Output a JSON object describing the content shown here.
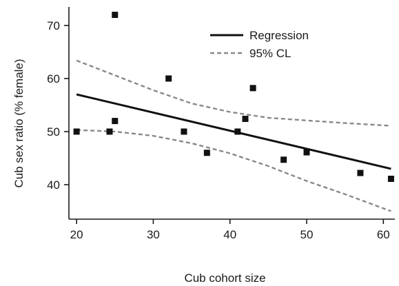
{
  "chart_data": {
    "type": "scatter",
    "xlabel": "Cub cohort size",
    "ylabel": "Cub sex ratio (% female)",
    "xlim": [
      19,
      61.5
    ],
    "ylim": [
      33.5,
      73.5
    ],
    "x_ticks": [
      20,
      30,
      40,
      50,
      60
    ],
    "y_ticks": [
      40,
      50,
      60,
      70
    ],
    "grid": false,
    "legend_position": "top-right",
    "points": [
      {
        "x": 20,
        "y": 50
      },
      {
        "x": 24.3,
        "y": 50
      },
      {
        "x": 25,
        "y": 52
      },
      {
        "x": 25,
        "y": 72
      },
      {
        "x": 32,
        "y": 60
      },
      {
        "x": 34,
        "y": 50
      },
      {
        "x": 37,
        "y": 46
      },
      {
        "x": 41,
        "y": 50
      },
      {
        "x": 42,
        "y": 52.4
      },
      {
        "x": 43,
        "y": 58.2
      },
      {
        "x": 47,
        "y": 44.7
      },
      {
        "x": 50,
        "y": 46.1
      },
      {
        "x": 57,
        "y": 42.2
      },
      {
        "x": 61,
        "y": 41.1
      }
    ],
    "series": [
      {
        "name": "Regression",
        "style": "solid",
        "color": "#111111",
        "x": [
          20,
          61
        ],
        "y": [
          57,
          43
        ]
      },
      {
        "name": "95% CL",
        "style": "dashed",
        "color": "#888888",
        "x": [
          20,
          25,
          30,
          35,
          40,
          45,
          50,
          55,
          61
        ],
        "y": [
          63.4,
          60.6,
          57.8,
          55.3,
          53.7,
          52.6,
          52.1,
          51.6,
          51.1
        ]
      },
      {
        "name": "",
        "style": "dashed",
        "color": "#888888",
        "x": [
          20,
          25,
          30,
          35,
          40,
          45,
          50,
          55,
          61
        ],
        "y": [
          50.3,
          50,
          49.2,
          47.8,
          45.9,
          43.5,
          40.7,
          38.2,
          35
        ]
      }
    ],
    "legend": [
      {
        "label": "Regression",
        "style": "solid"
      },
      {
        "label": "95% CL",
        "style": "dashed"
      }
    ]
  }
}
